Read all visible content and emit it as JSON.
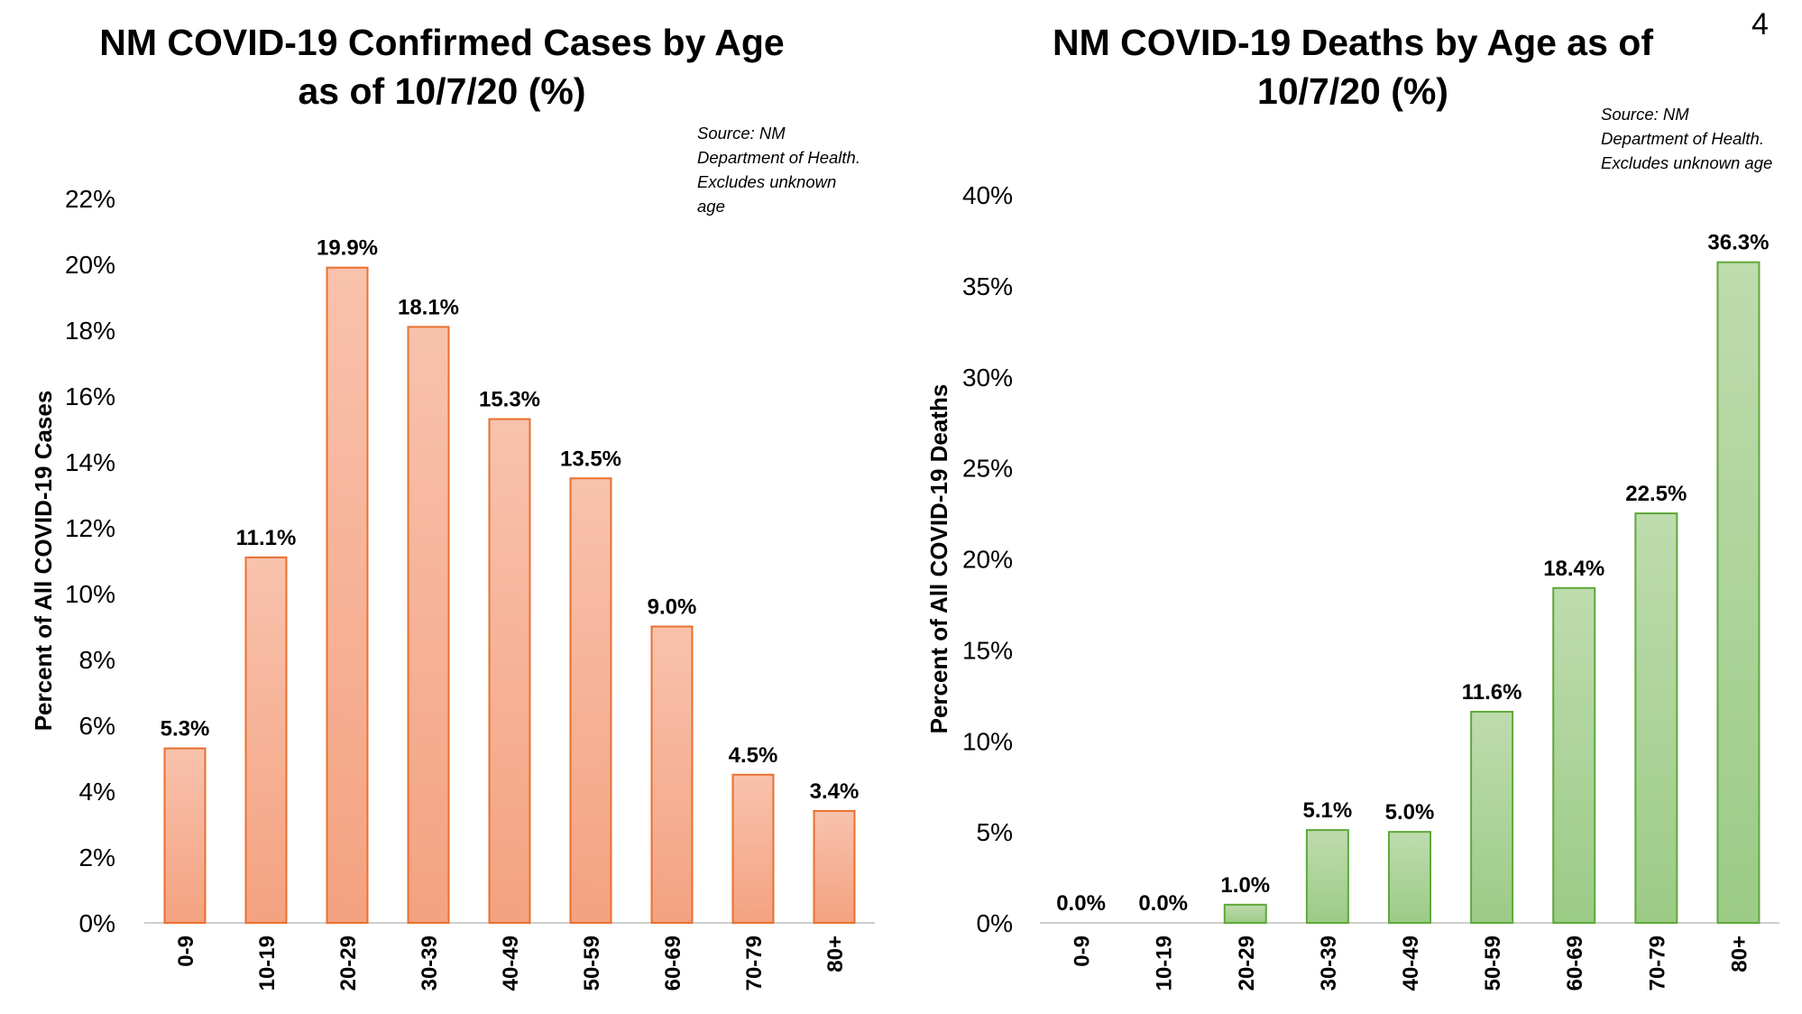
{
  "page_number": "4",
  "chart_data": [
    {
      "type": "bar",
      "title_lines": [
        "NM COVID-19 Confirmed Cases by Age",
        "as of 10/7/20 (%)"
      ],
      "source_lines": [
        "Source: NM",
        "Department of Health.",
        "Excludes unknown",
        "age"
      ],
      "ylabel": "Percent of All COVID-19 Cases",
      "xlabel": "",
      "categories": [
        "0-9",
        "10-19",
        "20-29",
        "30-39",
        "40-49",
        "50-59",
        "60-69",
        "70-79",
        "80+"
      ],
      "values": [
        5.3,
        11.1,
        19.9,
        18.1,
        15.3,
        13.5,
        9.0,
        4.5,
        3.4
      ],
      "data_labels": [
        "5.3%",
        "11.1%",
        "19.9%",
        "18.1%",
        "15.3%",
        "13.5%",
        "9.0%",
        "4.5%",
        "3.4%"
      ],
      "ylim": [
        0,
        22
      ],
      "yticks": [
        0,
        2,
        4,
        6,
        8,
        10,
        12,
        14,
        16,
        18,
        20,
        22
      ],
      "ytick_labels": [
        "0%",
        "2%",
        "4%",
        "6%",
        "8%",
        "10%",
        "12%",
        "14%",
        "16%",
        "18%",
        "20%",
        "22%"
      ],
      "colors": {
        "fill_top": "#f8c2ad",
        "fill_bottom": "#f4a280",
        "stroke": "#e8702f"
      },
      "grid": false,
      "legend": "none"
    },
    {
      "type": "bar",
      "title_lines": [
        "NM COVID-19 Deaths by Age as of",
        "10/7/20 (%)"
      ],
      "source_lines": [
        "Source: NM",
        "Department of Health.",
        "Excludes unknown age"
      ],
      "ylabel": "Percent of All COVID-19 Deaths",
      "xlabel": "",
      "categories": [
        "0-9",
        "10-19",
        "20-29",
        "30-39",
        "40-49",
        "50-59",
        "60-69",
        "70-79",
        "80+"
      ],
      "values": [
        0.0,
        0.0,
        1.0,
        5.1,
        5.0,
        11.6,
        18.4,
        22.5,
        36.3
      ],
      "data_labels": [
        "0.0%",
        "0.0%",
        "1.0%",
        "5.1%",
        "5.0%",
        "11.6%",
        "18.4%",
        "22.5%",
        "36.3%"
      ],
      "ylim": [
        0,
        40
      ],
      "yticks": [
        0,
        5,
        10,
        15,
        20,
        25,
        30,
        35,
        40
      ],
      "ytick_labels": [
        "0%",
        "5%",
        "10%",
        "15%",
        "20%",
        "25%",
        "30%",
        "35%",
        "40%"
      ],
      "colors": {
        "fill_top": "#bedcae",
        "fill_bottom": "#9ccb86",
        "stroke": "#5fa83a"
      },
      "grid": false,
      "legend": "none"
    }
  ]
}
